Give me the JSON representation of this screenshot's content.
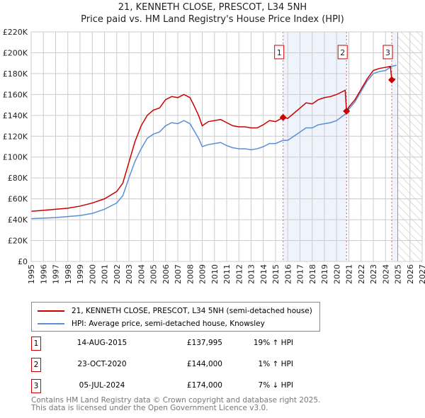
{
  "chart_data": {
    "type": "line",
    "title": "21, KENNETH CLOSE, PRESCOT, L34 5NH",
    "subtitle": "Price paid vs. HM Land Registry's House Price Index (HPI)",
    "xlim": [
      1995,
      2027
    ],
    "ylim": [
      0,
      220000
    ],
    "x_ticks": [
      "1995",
      "1996",
      "1997",
      "1998",
      "1999",
      "2000",
      "2001",
      "2002",
      "2003",
      "2004",
      "2005",
      "2006",
      "2007",
      "2008",
      "2009",
      "2010",
      "2011",
      "2012",
      "2013",
      "2014",
      "2015",
      "2016",
      "2017",
      "2018",
      "2019",
      "2020",
      "2021",
      "2022",
      "2023",
      "2024",
      "2025",
      "2026",
      "2027"
    ],
    "y_ticks": [
      {
        "v": 0,
        "label": "£0"
      },
      {
        "v": 20000,
        "label": "£20K"
      },
      {
        "v": 40000,
        "label": "£40K"
      },
      {
        "v": 60000,
        "label": "£60K"
      },
      {
        "v": 80000,
        "label": "£80K"
      },
      {
        "v": 100000,
        "label": "£100K"
      },
      {
        "v": 120000,
        "label": "£120K"
      },
      {
        "v": 140000,
        "label": "£140K"
      },
      {
        "v": 160000,
        "label": "£160K"
      },
      {
        "v": 180000,
        "label": "£180K"
      },
      {
        "v": 200000,
        "label": "£200K"
      },
      {
        "v": 220000,
        "label": "£220K"
      }
    ],
    "grid": true,
    "series": [
      {
        "name": "21, KENNETH CLOSE, PRESCOT, L34 5NH (semi-detached house)",
        "color": "#cc0000",
        "x": [
          1995,
          1996,
          1997,
          1998,
          1999,
          2000,
          2001,
          2002,
          2002.5,
          2003,
          2003.5,
          2004,
          2004.5,
          2005,
          2005.5,
          2006,
          2006.5,
          2007,
          2007.5,
          2008,
          2008.3,
          2008.7,
          2009,
          2009.5,
          2010,
          2010.5,
          2011,
          2011.5,
          2012,
          2012.5,
          2013,
          2013.5,
          2014,
          2014.5,
          2015,
          2015.62,
          2016,
          2016.5,
          2017,
          2017.5,
          2018,
          2018.5,
          2019,
          2019.5,
          2020,
          2020.7,
          2020.81,
          2021,
          2021.5,
          2022,
          2022.5,
          2023,
          2023.5,
          2024,
          2024.4,
          2024.51,
          2024.8
        ],
        "y": [
          48000,
          49000,
          50000,
          51000,
          53000,
          56000,
          60000,
          67000,
          75000,
          95000,
          115000,
          130000,
          140000,
          145000,
          147000,
          155000,
          158000,
          157000,
          160000,
          157000,
          150000,
          140000,
          130000,
          134000,
          135000,
          136000,
          133000,
          130000,
          129000,
          129000,
          128000,
          128000,
          131000,
          135000,
          134000,
          137995,
          137000,
          142000,
          147000,
          152000,
          151000,
          155000,
          157000,
          158000,
          160000,
          164000,
          144000,
          148000,
          155000,
          165000,
          175000,
          183000,
          185000,
          186000,
          187000,
          174000,
          175000
        ]
      },
      {
        "name": "HPI: Average price, semi-detached house, Knowsley",
        "color": "#5b8fd4",
        "x": [
          1995,
          1996,
          1997,
          1998,
          1999,
          2000,
          2001,
          2002,
          2002.5,
          2003,
          2003.5,
          2004,
          2004.5,
          2005,
          2005.5,
          2006,
          2006.5,
          2007,
          2007.5,
          2008,
          2008.3,
          2008.7,
          2009,
          2009.5,
          2010,
          2010.5,
          2011,
          2011.5,
          2012,
          2012.5,
          2013,
          2013.5,
          2014,
          2014.5,
          2015,
          2015.6,
          2016,
          2016.5,
          2017,
          2017.5,
          2018,
          2018.5,
          2019,
          2019.5,
          2020,
          2020.8,
          2021,
          2021.5,
          2022,
          2022.5,
          2023,
          2023.5,
          2024,
          2024.5,
          2024.9
        ],
        "y": [
          41000,
          41500,
          42000,
          43000,
          44000,
          46000,
          50000,
          56000,
          63000,
          80000,
          96000,
          108000,
          118000,
          122000,
          124000,
          130000,
          133000,
          132000,
          135000,
          132000,
          126000,
          118000,
          110000,
          112000,
          113000,
          114000,
          111000,
          109000,
          108000,
          108000,
          107000,
          108000,
          110000,
          113000,
          113000,
          116000,
          116000,
          120000,
          124000,
          128000,
          128000,
          131000,
          132000,
          133000,
          135000,
          142000,
          146000,
          153000,
          163000,
          173000,
          180000,
          182000,
          183000,
          187000,
          188000
        ]
      }
    ],
    "sales": [
      {
        "n": "1",
        "x": 2015.62,
        "y": 137995,
        "date": "14-AUG-2015",
        "price": "£137,995",
        "hpi": "19% ↑ HPI"
      },
      {
        "n": "2",
        "x": 2020.81,
        "y": 144000,
        "date": "23-OCT-2020",
        "price": "£144,000",
        "hpi": "1% ↑ HPI"
      },
      {
        "n": "3",
        "x": 2024.51,
        "y": 174000,
        "date": "05-JUL-2024",
        "price": "£174,000",
        "hpi": "7% ↓ HPI"
      }
    ],
    "forecast_start": 2025.0,
    "legend_position": "below"
  },
  "footer": {
    "line1": "Contains HM Land Registry data © Crown copyright and database right 2025.",
    "line2": "This data is licensed under the Open Government Licence v3.0."
  }
}
